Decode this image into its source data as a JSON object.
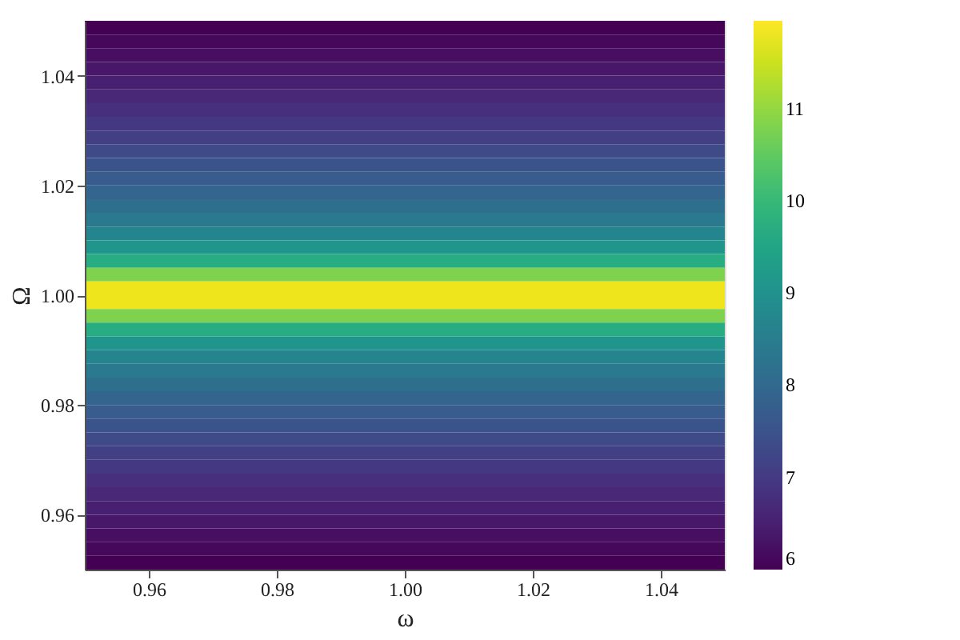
{
  "chart_data": {
    "type": "heatmap",
    "xlabel": "ω",
    "ylabel": "Ω",
    "x": [
      0.955,
      0.965,
      0.975,
      0.985,
      0.995,
      1.005,
      1.015,
      1.025,
      1.035,
      1.045
    ],
    "y": [
      1.04875,
      1.04625,
      1.04375,
      1.04125,
      1.03875,
      1.03625,
      1.03375,
      1.03125,
      1.02875,
      1.02625,
      1.02375,
      1.02125,
      1.01875,
      1.01625,
      1.01375,
      1.01125,
      1.00875,
      1.00625,
      1.00375,
      1.00125,
      0.99875,
      0.99625,
      0.99375,
      0.99125,
      0.98875,
      0.98625,
      0.98375,
      0.98125,
      0.97875,
      0.97625,
      0.97375,
      0.97125,
      0.96875,
      0.96625,
      0.96375,
      0.96125,
      0.95875,
      0.95625,
      0.95375,
      0.95125
    ],
    "cells": [
      [
        6.0,
        6.0,
        6.0,
        6.0,
        6.0,
        6.0,
        6.0,
        6.0,
        6.0,
        6.0
      ],
      [
        6.1,
        6.1,
        6.1,
        6.1,
        6.1,
        6.1,
        6.1,
        6.1,
        6.1,
        6.1
      ],
      [
        6.2,
        6.2,
        6.2,
        6.2,
        6.2,
        6.2,
        6.2,
        6.2,
        6.2,
        6.2
      ],
      [
        6.35,
        6.35,
        6.35,
        6.35,
        6.35,
        6.35,
        6.35,
        6.35,
        6.35,
        6.35
      ],
      [
        6.5,
        6.5,
        6.5,
        6.5,
        6.5,
        6.5,
        6.5,
        6.5,
        6.5,
        6.5
      ],
      [
        6.65,
        6.65,
        6.65,
        6.65,
        6.65,
        6.65,
        6.65,
        6.65,
        6.65,
        6.65
      ],
      [
        6.8,
        6.8,
        6.8,
        6.8,
        6.8,
        6.8,
        6.8,
        6.8,
        6.8,
        6.8
      ],
      [
        6.95,
        6.95,
        6.95,
        6.95,
        6.95,
        6.95,
        6.95,
        6.95,
        6.95,
        6.95
      ],
      [
        7.1,
        7.1,
        7.1,
        7.1,
        7.1,
        7.1,
        7.1,
        7.1,
        7.1,
        7.1
      ],
      [
        7.3,
        7.3,
        7.3,
        7.3,
        7.3,
        7.3,
        7.3,
        7.3,
        7.3,
        7.3
      ],
      [
        7.5,
        7.5,
        7.5,
        7.5,
        7.5,
        7.5,
        7.5,
        7.5,
        7.5,
        7.5
      ],
      [
        7.7,
        7.7,
        7.7,
        7.7,
        7.7,
        7.7,
        7.7,
        7.7,
        7.7,
        7.7
      ],
      [
        7.9,
        7.9,
        7.9,
        7.9,
        7.9,
        7.9,
        7.9,
        7.9,
        7.9,
        7.9
      ],
      [
        8.15,
        8.15,
        8.15,
        8.15,
        8.15,
        8.15,
        8.15,
        8.15,
        8.15,
        8.15
      ],
      [
        8.4,
        8.4,
        8.4,
        8.4,
        8.4,
        8.4,
        8.4,
        8.4,
        8.4,
        8.4
      ],
      [
        8.7,
        8.7,
        8.7,
        8.7,
        8.7,
        8.7,
        8.7,
        8.7,
        8.7,
        8.7
      ],
      [
        9.1,
        9.1,
        9.1,
        9.1,
        9.1,
        9.1,
        9.1,
        9.1,
        9.1,
        9.1
      ],
      [
        9.7,
        9.7,
        9.7,
        9.7,
        9.7,
        9.7,
        9.7,
        9.7,
        9.7,
        9.7
      ],
      [
        10.8,
        10.8,
        10.8,
        10.8,
        10.8,
        10.8,
        10.8,
        10.8,
        10.8,
        10.8
      ],
      [
        11.8,
        11.8,
        11.8,
        11.8,
        11.8,
        11.8,
        11.8,
        11.8,
        11.8,
        11.8
      ],
      [
        11.8,
        11.8,
        11.8,
        11.8,
        11.8,
        11.8,
        11.8,
        11.8,
        11.8,
        11.8
      ],
      [
        10.8,
        10.8,
        10.8,
        10.8,
        10.8,
        10.8,
        10.8,
        10.8,
        10.8,
        10.8
      ],
      [
        9.7,
        9.7,
        9.7,
        9.7,
        9.7,
        9.7,
        9.7,
        9.7,
        9.7,
        9.7
      ],
      [
        9.1,
        9.1,
        9.1,
        9.1,
        9.1,
        9.1,
        9.1,
        9.1,
        9.1,
        9.1
      ],
      [
        8.7,
        8.7,
        8.7,
        8.7,
        8.7,
        8.7,
        8.7,
        8.7,
        8.7,
        8.7
      ],
      [
        8.4,
        8.4,
        8.4,
        8.4,
        8.4,
        8.4,
        8.4,
        8.4,
        8.4,
        8.4
      ],
      [
        8.15,
        8.15,
        8.15,
        8.15,
        8.15,
        8.15,
        8.15,
        8.15,
        8.15,
        8.15
      ],
      [
        7.9,
        7.9,
        7.9,
        7.9,
        7.9,
        7.9,
        7.9,
        7.9,
        7.9,
        7.9
      ],
      [
        7.7,
        7.7,
        7.7,
        7.7,
        7.7,
        7.7,
        7.7,
        7.7,
        7.7,
        7.7
      ],
      [
        7.5,
        7.5,
        7.5,
        7.5,
        7.5,
        7.5,
        7.5,
        7.5,
        7.5,
        7.5
      ],
      [
        7.3,
        7.3,
        7.3,
        7.3,
        7.3,
        7.3,
        7.3,
        7.3,
        7.3,
        7.3
      ],
      [
        7.1,
        7.1,
        7.1,
        7.1,
        7.1,
        7.1,
        7.1,
        7.1,
        7.1,
        7.1
      ],
      [
        6.95,
        6.95,
        6.95,
        6.95,
        6.95,
        6.95,
        6.95,
        6.95,
        6.95,
        6.95
      ],
      [
        6.8,
        6.8,
        6.8,
        6.8,
        6.8,
        6.8,
        6.8,
        6.8,
        6.8,
        6.8
      ],
      [
        6.65,
        6.65,
        6.65,
        6.65,
        6.65,
        6.65,
        6.65,
        6.65,
        6.65,
        6.65
      ],
      [
        6.5,
        6.5,
        6.5,
        6.5,
        6.5,
        6.5,
        6.5,
        6.5,
        6.5,
        6.5
      ],
      [
        6.35,
        6.35,
        6.35,
        6.35,
        6.35,
        6.35,
        6.35,
        6.35,
        6.35,
        6.35
      ],
      [
        6.2,
        6.2,
        6.2,
        6.2,
        6.2,
        6.2,
        6.2,
        6.2,
        6.2,
        6.2
      ],
      [
        6.1,
        6.1,
        6.1,
        6.1,
        6.1,
        6.1,
        6.1,
        6.1,
        6.1,
        6.1
      ],
      [
        6.0,
        6.0,
        6.0,
        6.0,
        6.0,
        6.0,
        6.0,
        6.0,
        6.0,
        6.0
      ]
    ],
    "xlim": [
      0.95,
      1.05
    ],
    "xticks": [
      0.96,
      0.98,
      {
        "value": 1.0,
        "label": "1.00"
      },
      1.02,
      1.04
    ],
    "ylim": [
      0.95,
      1.05
    ],
    "yticks": [
      0.96,
      0.98,
      {
        "value": 1.0,
        "label": "1.00"
      },
      1.02,
      1.04
    ],
    "clim": [
      6,
      11.95
    ],
    "cticks": [
      6,
      7,
      8,
      9,
      10,
      11
    ],
    "grid": false
  }
}
